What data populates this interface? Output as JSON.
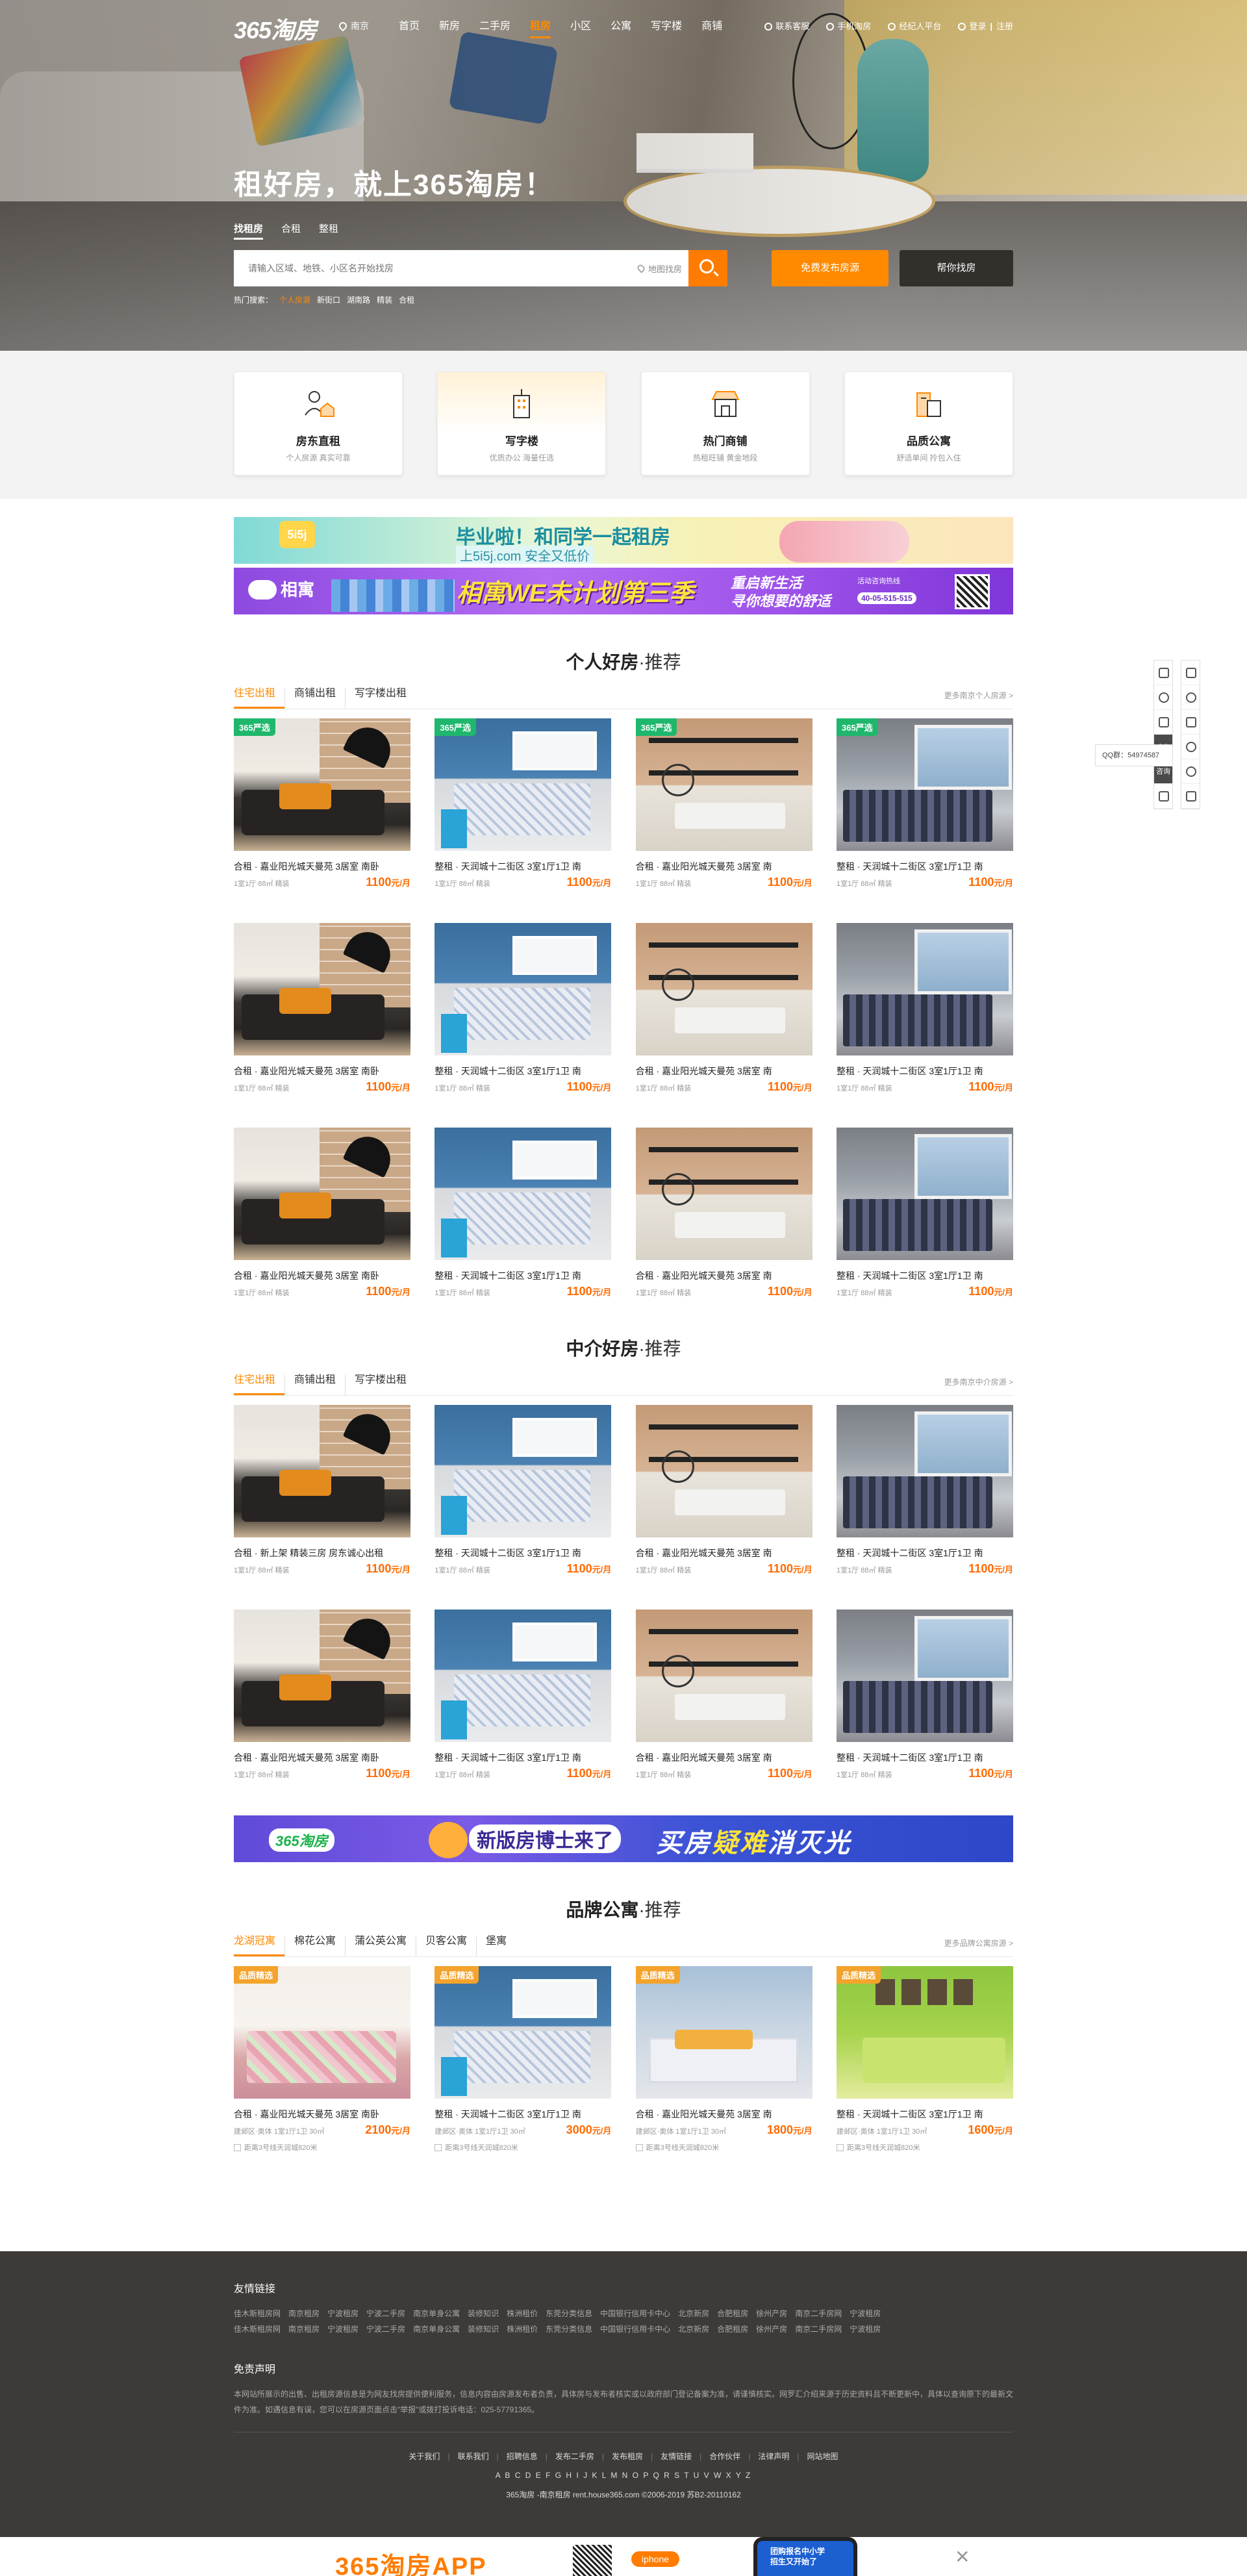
{
  "nav": {
    "logo": "365淘房",
    "city": "南京",
    "menu": [
      "首页",
      "新房",
      "二手房",
      "租房",
      "小区",
      "公寓",
      "写字楼",
      "商铺"
    ],
    "active_index": 3,
    "right": {
      "service": "联系客服",
      "mobile": "手机淘房",
      "broker": "经纪人平台",
      "login": "登录",
      "register": "注册"
    }
  },
  "hero": {
    "slogan": "租好房，就上365淘房！",
    "tabs": [
      "找租房",
      "合租",
      "整租"
    ],
    "search_placeholder": "请输入区域、地铁、小区名开始找房",
    "map_find": "地图找房",
    "btn_post": "免费发布房源",
    "btn_help": "帮你找房",
    "hot_label": "热门搜索：",
    "hot_items": [
      "个人房源",
      "新街口",
      "湖南路",
      "精装",
      "合租"
    ]
  },
  "services": [
    {
      "title": "房东直租",
      "sub": "个人房源 真实可靠"
    },
    {
      "title": "写字楼",
      "sub": "优质办公 海量任选"
    },
    {
      "title": "热门商铺",
      "sub": "热租旺铺 黄金地段"
    },
    {
      "title": "品质公寓",
      "sub": "舒适单间 拎包入住"
    }
  ],
  "ad1": {
    "tag": "5i5j",
    "title": "毕业啦！和同学一起租房",
    "sub": "上5i5j.com 安全又低价"
  },
  "ad2": {
    "logo": "相寓",
    "title": "相寓WE未计划第三季",
    "sub1": "重启新生活",
    "sub2": "寻你想要的舒适",
    "hotline_label": "活动咨询热线",
    "hotline": "40-05-515-515"
  },
  "ad3": {
    "logo": "365淘房",
    "title": "新版房博士来了",
    "slogan_a": "买房",
    "slogan_b": "疑难",
    "slogan_c": "消灭光"
  },
  "personal": {
    "title": "个人好房",
    "rec": "·推荐",
    "tabs": [
      "住宅出租",
      "商铺出租",
      "写字楼出租"
    ],
    "more": "更多南京个人房源 >",
    "items": [
      {
        "badge": "365严选",
        "title": "合租 · 嘉业阳光城天曼苑 3居室 南卧",
        "meta": "1室1厅 88㎡ 精装",
        "price": "1100",
        "unit": "元/月",
        "scene": 1
      },
      {
        "badge": "365严选",
        "title": "整租 · 天润城十二街区 3室1厅1卫 南",
        "meta": "1室1厅 88㎡ 精装",
        "price": "1100",
        "unit": "元/月",
        "scene": 2
      },
      {
        "badge": "365严选",
        "title": "合租 · 嘉业阳光城天曼苑 3居室 南",
        "meta": "1室1厅 88㎡ 精装",
        "price": "1100",
        "unit": "元/月",
        "scene": 3
      },
      {
        "badge": "365严选",
        "title": "整租 · 天润城十二街区 3室1厅1卫 南",
        "meta": "1室1厅 88㎡ 精装",
        "price": "1100",
        "unit": "元/月",
        "scene": 4
      },
      {
        "badge": "",
        "title": "合租 · 嘉业阳光城天曼苑 3居室 南卧",
        "meta": "1室1厅 88㎡ 精装",
        "price": "1100",
        "unit": "元/月",
        "scene": 1
      },
      {
        "badge": "",
        "title": "整租 · 天润城十二街区 3室1厅1卫 南",
        "meta": "1室1厅 88㎡ 精装",
        "price": "1100",
        "unit": "元/月",
        "scene": 2
      },
      {
        "badge": "",
        "title": "合租 · 嘉业阳光城天曼苑 3居室 南",
        "meta": "1室1厅 88㎡ 精装",
        "price": "1100",
        "unit": "元/月",
        "scene": 3
      },
      {
        "badge": "",
        "title": "整租 · 天润城十二街区 3室1厅1卫 南",
        "meta": "1室1厅 88㎡ 精装",
        "price": "1100",
        "unit": "元/月",
        "scene": 4
      },
      {
        "badge": "",
        "title": "合租 · 嘉业阳光城天曼苑 3居室 南卧",
        "meta": "1室1厅 88㎡ 精装",
        "price": "1100",
        "unit": "元/月",
        "scene": 1
      },
      {
        "badge": "",
        "title": "整租 · 天润城十二街区 3室1厅1卫 南",
        "meta": "1室1厅 88㎡ 精装",
        "price": "1100",
        "unit": "元/月",
        "scene": 2
      },
      {
        "badge": "",
        "title": "合租 · 嘉业阳光城天曼苑 3居室 南",
        "meta": "1室1厅 88㎡ 精装",
        "price": "1100",
        "unit": "元/月",
        "scene": 3
      },
      {
        "badge": "",
        "title": "整租 · 天润城十二街区 3室1厅1卫 南",
        "meta": "1室1厅 88㎡ 精装",
        "price": "1100",
        "unit": "元/月",
        "scene": 4
      }
    ]
  },
  "agency": {
    "title": "中介好房",
    "rec": "·推荐",
    "tabs": [
      "住宅出租",
      "商铺出租",
      "写字楼出租"
    ],
    "more": "更多南京中介房源 >",
    "items": [
      {
        "badge": "",
        "title": "合租 · 新上架 精装三房 房东诚心出租",
        "meta": "1室1厅 88㎡ 精装",
        "price": "1100",
        "unit": "元/月",
        "scene": 1
      },
      {
        "badge": "",
        "title": "整租 · 天润城十二街区 3室1厅1卫 南",
        "meta": "1室1厅 88㎡ 精装",
        "price": "1100",
        "unit": "元/月",
        "scene": 2
      },
      {
        "badge": "",
        "title": "合租 · 嘉业阳光城天曼苑 3居室 南",
        "meta": "1室1厅 88㎡ 精装",
        "price": "1100",
        "unit": "元/月",
        "scene": 3
      },
      {
        "badge": "",
        "title": "整租 · 天润城十二街区 3室1厅1卫 南",
        "meta": "1室1厅 88㎡ 精装",
        "price": "1100",
        "unit": "元/月",
        "scene": 4
      },
      {
        "badge": "",
        "title": "合租 · 嘉业阳光城天曼苑 3居室 南卧",
        "meta": "1室1厅 88㎡ 精装",
        "price": "1100",
        "unit": "元/月",
        "scene": 1
      },
      {
        "badge": "",
        "title": "整租 · 天润城十二街区 3室1厅1卫 南",
        "meta": "1室1厅 88㎡ 精装",
        "price": "1100",
        "unit": "元/月",
        "scene": 2
      },
      {
        "badge": "",
        "title": "合租 · 嘉业阳光城天曼苑 3居室 南",
        "meta": "1室1厅 88㎡ 精装",
        "price": "1100",
        "unit": "元/月",
        "scene": 3
      },
      {
        "badge": "",
        "title": "整租 · 天润城十二街区 3室1厅1卫 南",
        "meta": "1室1厅 88㎡ 精装",
        "price": "1100",
        "unit": "元/月",
        "scene": 4
      }
    ]
  },
  "brand": {
    "title": "品牌公寓",
    "rec": "·推荐",
    "tabs": [
      "龙湖冠寓",
      "棉花公寓",
      "蒲公英公寓",
      "贝客公寓",
      "堡寓"
    ],
    "more": "更多品牌公寓房源 >",
    "items": [
      {
        "badge": "品质精选",
        "title": "合租 · 嘉业阳光城天曼苑 3居室 南卧",
        "meta": "建邺区·奥体 1室1厅1卫 30㎡",
        "price": "2100",
        "unit": "元/月",
        "extra": "距离3号线天润城820米",
        "scene": 5
      },
      {
        "badge": "品质精选",
        "title": "整租 · 天润城十二街区 3室1厅1卫 南",
        "meta": "建邺区·奥体 1室1厅1卫 30㎡",
        "price": "3000",
        "unit": "元/月",
        "extra": "距离3号线天润城820米",
        "scene": 2
      },
      {
        "badge": "品质精选",
        "title": "合租 · 嘉业阳光城天曼苑 3居室 南",
        "meta": "建邺区·奥体 1室1厅1卫 30㎡",
        "price": "1800",
        "unit": "元/月",
        "extra": "距离3号线天润城820米",
        "scene": 6
      },
      {
        "badge": "品质精选",
        "title": "整租 · 天润城十二街区 3室1厅1卫 南",
        "meta": "建邺区·奥体 1室1厅1卫 30㎡",
        "price": "1600",
        "unit": "元/月",
        "extra": "距离3号线天润城820米",
        "scene": 7
      }
    ]
  },
  "sidebar": {
    "qq_label": "QQ群：54974587",
    "consult": "咨询",
    "qq_icon_label": "QQ"
  },
  "footer": {
    "links_title": "友情链接",
    "links_row1": [
      "佳木斯租房网",
      "南京租房",
      "宁波租房",
      "宁波二手房",
      "南京单身公寓",
      "装修知识",
      "株洲租价",
      "东莞分类信息",
      "中国银行信用卡中心",
      "北京新房",
      "合肥租房",
      "徐州产房",
      "南京二手房网",
      "宁波租房"
    ],
    "links_row2": [
      "佳木斯租房网",
      "南京租房",
      "宁波租房",
      "宁波二手房",
      "南京单身公寓",
      "装修知识",
      "株洲租价",
      "东莞分类信息",
      "中国银行信用卡中心",
      "北京新房",
      "合肥租房",
      "徐州产房",
      "南京二手房网",
      "宁波租房"
    ],
    "disclaimer_title": "免责声明",
    "disclaimer": "本网站所展示的出售、出租房源信息是为网友找房提供便利服务，信息内容由房源发布者负责，具体房与发布者核实或以政府部门登记备案为准，请谨慎核实。网罗汇介绍来源于历史资料且不断更新中，具体以查询原下的最新文件为准。如遇信息有误，您可以在房源页面点击\"举报\"或拨打投诉电话：025-57791365。",
    "nav": [
      "关于我们",
      "联系我们",
      "招聘信息",
      "发布二手房",
      "发布租房",
      "友情链接",
      "合作伙伴",
      "法律声明",
      "网站地图"
    ],
    "alpha": "A B C D E F G H I J K L M N O P Q R S T U V W X Y Z",
    "copy": "365淘房 -南京租房 rent.house365.com ©2006-2019   苏B2-20110162"
  },
  "appbar": {
    "title": "365淘房APP",
    "ios": "iphone",
    "phone_text_1": "团购报名中小学",
    "phone_text_2": "招生又开始了"
  },
  "colors": {
    "accent": "#ff8a00",
    "price": "#ff6a00",
    "badge_green": "#1fb76c",
    "badge_gold": "#f4a32c",
    "footer_bg": "#3d3a38"
  }
}
